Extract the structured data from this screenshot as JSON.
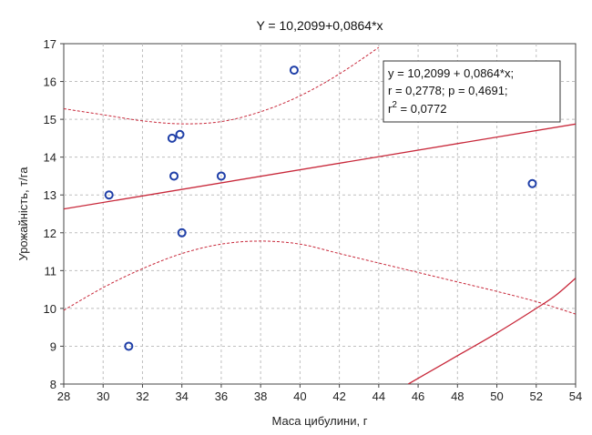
{
  "chart_data": {
    "type": "scatter",
    "title": "Y = 10,2099+0,0864*x",
    "xlabel": "Маса цибулини, г",
    "ylabel": "Урожайність, т/га",
    "xlim": [
      28,
      54
    ],
    "ylim": [
      8,
      17
    ],
    "x_ticks": [
      "28",
      "30",
      "32",
      "34",
      "36",
      "38",
      "40",
      "42",
      "44",
      "46",
      "48",
      "50",
      "52",
      "54"
    ],
    "y_ticks": [
      "8",
      "9",
      "10",
      "11",
      "12",
      "13",
      "14",
      "15",
      "16",
      "17"
    ],
    "grid": true,
    "points": [
      {
        "x": 30.3,
        "y": 13.0
      },
      {
        "x": 31.3,
        "y": 9.0
      },
      {
        "x": 33.5,
        "y": 14.5
      },
      {
        "x": 33.6,
        "y": 13.5
      },
      {
        "x": 33.9,
        "y": 14.6
      },
      {
        "x": 34.0,
        "y": 12.0
      },
      {
        "x": 36.0,
        "y": 13.5
      },
      {
        "x": 39.7,
        "y": 16.3
      },
      {
        "x": 51.8,
        "y": 13.3
      }
    ],
    "regression": {
      "intercept": 10.2099,
      "slope": 0.0864
    },
    "confidence_upper": [
      [
        28,
        15.28
      ],
      [
        30,
        15.12
      ],
      [
        32,
        14.96
      ],
      [
        34,
        14.88
      ],
      [
        36,
        14.94
      ],
      [
        38,
        15.2
      ],
      [
        40,
        15.62
      ],
      [
        42,
        16.2
      ],
      [
        44,
        16.9
      ]
    ],
    "confidence_lower": [
      [
        28,
        9.95
      ],
      [
        30,
        10.55
      ],
      [
        32,
        11.05
      ],
      [
        34,
        11.45
      ],
      [
        36,
        11.7
      ],
      [
        38,
        11.78
      ],
      [
        40,
        11.7
      ],
      [
        42,
        11.45
      ],
      [
        44,
        11.2
      ],
      [
        46,
        10.95
      ],
      [
        48,
        10.7
      ],
      [
        50,
        10.45
      ],
      [
        52,
        10.18
      ],
      [
        54,
        9.85
      ]
    ],
    "prediction_curve": [
      [
        45.5,
        8.0
      ],
      [
        47,
        8.45
      ],
      [
        48,
        8.75
      ],
      [
        50,
        9.35
      ],
      [
        52,
        10.0
      ],
      [
        53,
        10.35
      ],
      [
        54,
        10.8
      ]
    ],
    "annotation": {
      "line1": "y = 10,2099 + 0,0864*x;",
      "line2": "r = 0,2778; p = 0,4691;",
      "line3_base": "r",
      "line3_sup": "2",
      "line3_rest": " = 0,0772"
    },
    "colors": {
      "point": "#1f3fa8",
      "line": "#c8283a",
      "grid": "#bfbfbf"
    }
  }
}
